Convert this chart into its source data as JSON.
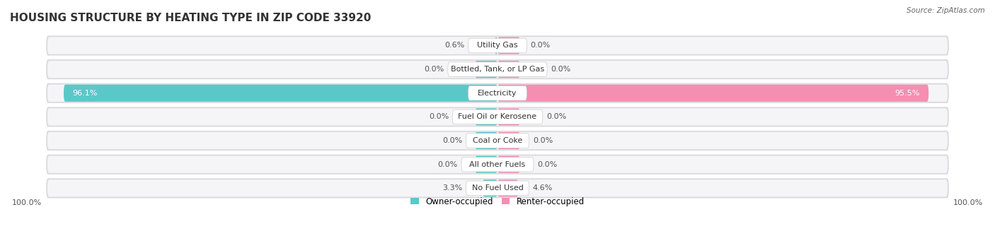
{
  "title": "HOUSING STRUCTURE BY HEATING TYPE IN ZIP CODE 33920",
  "source": "Source: ZipAtlas.com",
  "categories": [
    "Utility Gas",
    "Bottled, Tank, or LP Gas",
    "Electricity",
    "Fuel Oil or Kerosene",
    "Coal or Coke",
    "All other Fuels",
    "No Fuel Used"
  ],
  "owner_values": [
    0.6,
    0.0,
    96.1,
    0.0,
    0.0,
    0.0,
    3.3
  ],
  "renter_values": [
    0.0,
    0.0,
    95.5,
    0.0,
    0.0,
    0.0,
    4.6
  ],
  "owner_color": "#5BC8C8",
  "renter_color": "#F48FB1",
  "row_bg_color": "#E8E8EC",
  "row_inner_color": "#F5F5F8",
  "axis_label_left": "100.0%",
  "axis_label_right": "100.0%",
  "legend_owner": "Owner-occupied",
  "legend_renter": "Renter-occupied",
  "title_fontsize": 11,
  "bar_max": 100.0,
  "stub_size": 5.0,
  "pill_widths": {
    "Utility Gas": 13,
    "Bottled, Tank, or LP Gas": 22,
    "Electricity": 13,
    "Fuel Oil or Kerosene": 20,
    "Coal or Coke": 14,
    "All other Fuels": 16,
    "No Fuel Used": 14
  }
}
